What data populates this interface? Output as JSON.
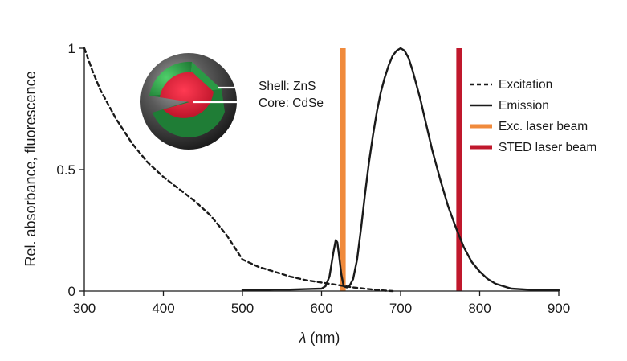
{
  "chart_data": {
    "type": "line",
    "title": "",
    "xlabel_symbol": "λ",
    "xlabel_unit": " (nm)",
    "ylabel": "Rel. absorbance, fluorescence",
    "xlim": [
      300,
      900
    ],
    "ylim": [
      0,
      1
    ],
    "x_ticks": [
      300,
      400,
      500,
      600,
      700,
      800,
      900
    ],
    "x_tick_labels": [
      "300",
      "400",
      "500",
      "600",
      "700",
      "800",
      "900"
    ],
    "y_ticks": [
      0,
      0.5,
      1
    ],
    "y_tick_labels": [
      "0",
      "0.5",
      "1"
    ],
    "grid": false,
    "legend_position": "right",
    "series": [
      {
        "name": "Excitation",
        "style": "dashed",
        "color": "#1a1a1a",
        "x": [
          300,
          310,
          320,
          340,
          360,
          380,
          400,
          420,
          440,
          460,
          480,
          500,
          520,
          540,
          560,
          580,
          600,
          620,
          640,
          660,
          680,
          690
        ],
        "y": [
          1.0,
          0.91,
          0.83,
          0.71,
          0.61,
          0.53,
          0.47,
          0.42,
          0.37,
          0.31,
          0.23,
          0.13,
          0.1,
          0.08,
          0.06,
          0.045,
          0.035,
          0.025,
          0.015,
          0.008,
          0.002,
          0.0
        ]
      },
      {
        "name": "Emission",
        "style": "solid",
        "color": "#1a1a1a",
        "x": [
          500,
          520,
          540,
          560,
          580,
          600,
          605,
          610,
          615,
          618,
          620,
          622,
          625,
          628,
          632,
          636,
          640,
          645,
          650,
          655,
          660,
          665,
          670,
          675,
          680,
          685,
          690,
          695,
          700,
          705,
          710,
          715,
          720,
          725,
          730,
          740,
          750,
          760,
          770,
          780,
          790,
          800,
          810,
          820,
          830,
          840,
          860,
          880,
          900
        ],
        "y": [
          0.005,
          0.005,
          0.006,
          0.006,
          0.008,
          0.01,
          0.02,
          0.06,
          0.16,
          0.21,
          0.2,
          0.15,
          0.07,
          0.02,
          0.015,
          0.025,
          0.05,
          0.13,
          0.26,
          0.4,
          0.53,
          0.64,
          0.74,
          0.82,
          0.88,
          0.93,
          0.97,
          0.99,
          1.0,
          0.99,
          0.96,
          0.91,
          0.85,
          0.79,
          0.72,
          0.58,
          0.46,
          0.35,
          0.26,
          0.18,
          0.12,
          0.08,
          0.05,
          0.03,
          0.02,
          0.01,
          0.006,
          0.004,
          0.003
        ]
      },
      {
        "name": "Exc. laser beam",
        "style": "vertical-band",
        "color": "#f08a3c",
        "x_value": 627
      },
      {
        "name": "STED laser beam",
        "style": "vertical-band",
        "color": "#c0182c",
        "x_value": 774
      }
    ],
    "inset": {
      "shell_label": "Shell: ZnS",
      "core_label": "Core: CdSe"
    }
  }
}
